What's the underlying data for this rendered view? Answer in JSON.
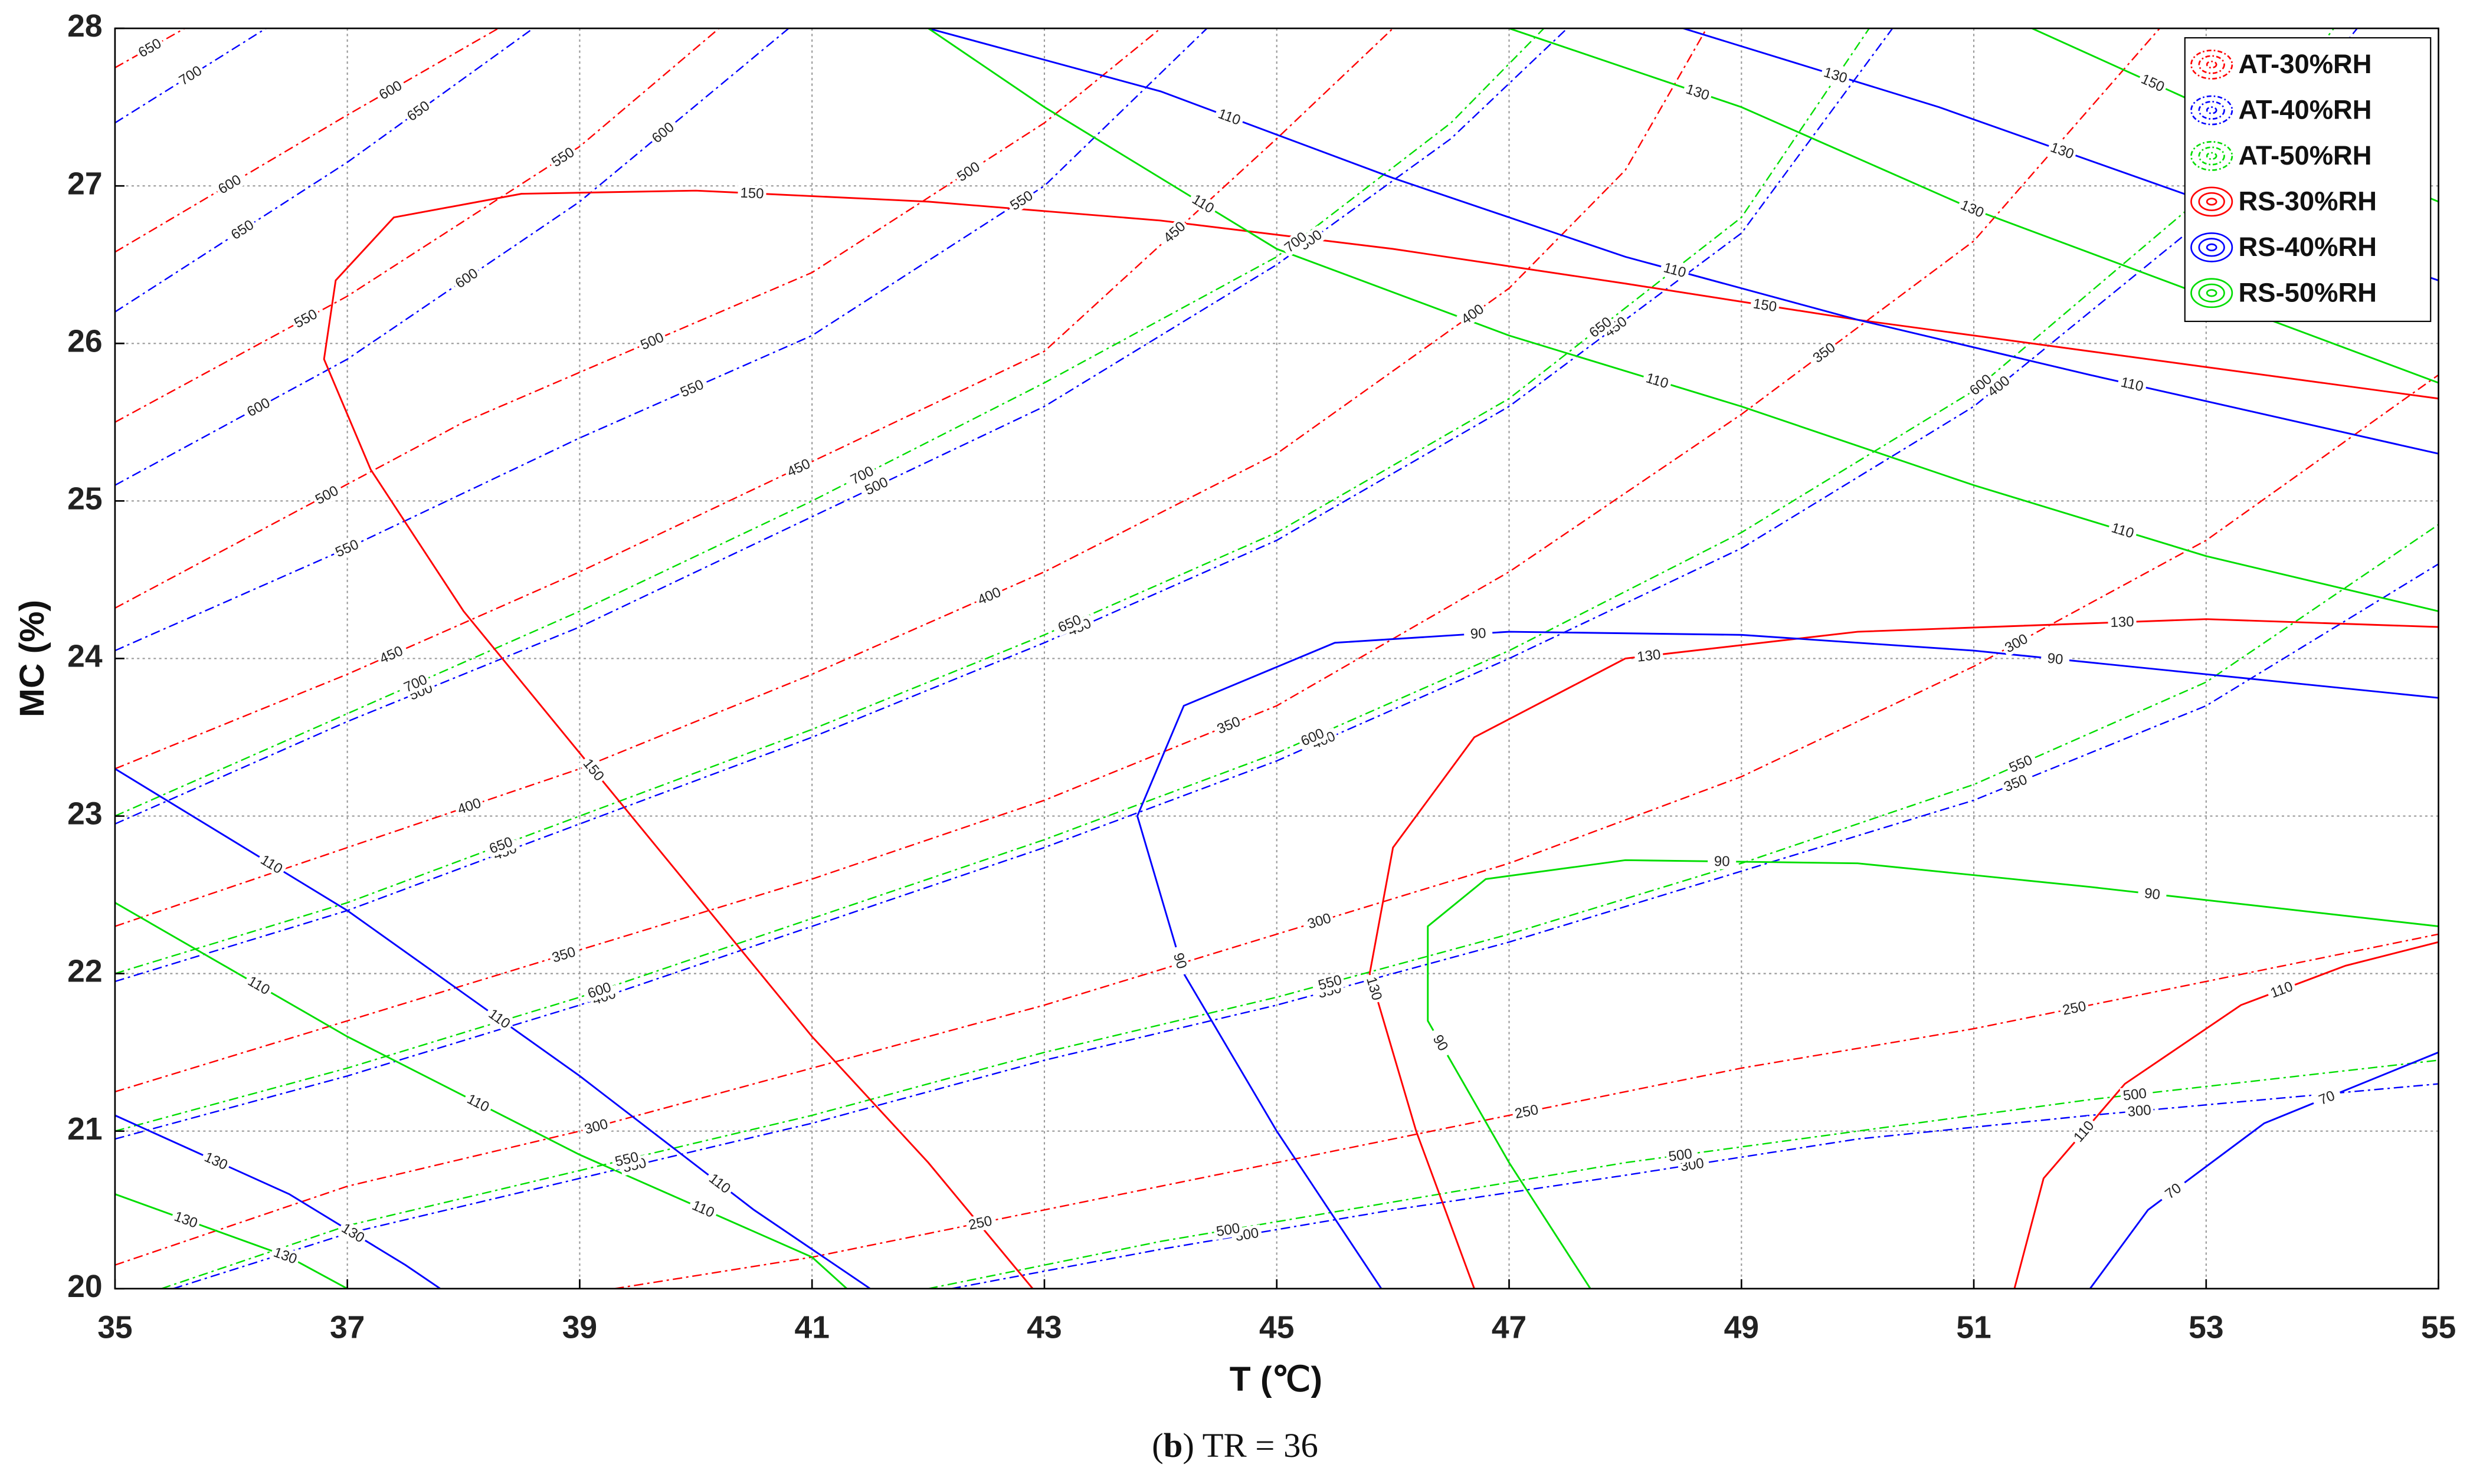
{
  "chart_data": {
    "type": "contour",
    "xlabel": "T (℃)",
    "ylabel": "MC (%)",
    "xlim": [
      35,
      55
    ],
    "ylim": [
      20,
      28
    ],
    "xticks": [
      35,
      37,
      39,
      41,
      43,
      45,
      47,
      49,
      51,
      53,
      55
    ],
    "yticks": [
      20,
      21,
      22,
      23,
      24,
      25,
      26,
      27,
      28
    ],
    "grid": true,
    "legend": "upper right",
    "caption": [
      "(",
      "b",
      ") TR = 36"
    ],
    "series": [
      {
        "name": "AT-30%RH",
        "color": "#ff0000",
        "linestyle": "dashdot",
        "contours": [
          {
            "level": 650,
            "x": [
              35,
              35.6
            ],
            "y": [
              27.75,
              28
            ]
          },
          {
            "level": 600,
            "x": [
              35,
              37,
              38.3
            ],
            "y": [
              26.58,
              27.45,
              28
            ]
          },
          {
            "level": 550,
            "x": [
              35,
              37,
              39,
              40.2
            ],
            "y": [
              25.5,
              26.3,
              27.25,
              28
            ]
          },
          {
            "level": 500,
            "x": [
              35,
              38,
              41,
              43,
              44
            ],
            "y": [
              24.32,
              25.5,
              26.45,
              27.4,
              28
            ]
          },
          {
            "level": 450,
            "x": [
              35,
              37,
              39,
              41,
              43,
              45,
              46
            ],
            "y": [
              23.3,
              23.9,
              24.55,
              25.25,
              25.95,
              27.3,
              28
            ]
          },
          {
            "level": 400,
            "x": [
              35,
              37,
              39,
              41,
              43,
              45,
              47,
              48,
              48.7
            ],
            "y": [
              22.3,
              22.8,
              23.3,
              23.9,
              24.55,
              25.3,
              26.35,
              27.1,
              28
            ]
          },
          {
            "level": 350,
            "x": [
              35,
              37,
              39,
              41,
              43,
              45,
              47,
              49,
              51,
              52.6
            ],
            "y": [
              21.25,
              21.7,
              22.15,
              22.6,
              23.1,
              23.7,
              24.55,
              25.55,
              26.65,
              28
            ]
          },
          {
            "level": 300,
            "x": [
              35,
              37,
              39,
              41,
              43,
              45,
              47,
              49,
              51,
              53,
              55
            ],
            "y": [
              20.15,
              20.65,
              21.0,
              21.4,
              21.8,
              22.25,
              22.7,
              23.25,
              23.95,
              24.75,
              25.8
            ]
          },
          {
            "level": 250,
            "x": [
              39.3,
              41,
              43,
              45,
              47,
              49,
              51,
              53,
              55
            ],
            "y": [
              20,
              20.2,
              20.5,
              20.8,
              21.1,
              21.4,
              21.65,
              21.95,
              22.25
            ]
          }
        ]
      },
      {
        "name": "AT-40%RH",
        "color": "#0000ff",
        "linestyle": "dashdot",
        "contours": [
          {
            "level": 700,
            "x": [
              35,
              36.3
            ],
            "y": [
              27.4,
              28
            ]
          },
          {
            "level": 650,
            "x": [
              35,
              37,
              38.6
            ],
            "y": [
              26.2,
              27.15,
              28
            ]
          },
          {
            "level": 600,
            "x": [
              35,
              37,
              39,
              40.8
            ],
            "y": [
              25.1,
              25.9,
              26.9,
              28
            ]
          },
          {
            "level": 550,
            "x": [
              35,
              37,
              39,
              41,
              43,
              44.4
            ],
            "y": [
              24.05,
              24.7,
              25.4,
              26.05,
              27.0,
              28
            ]
          },
          {
            "level": 500,
            "x": [
              35,
              37,
              39,
              41,
              43,
              45,
              46.5,
              47.5
            ],
            "y": [
              22.95,
              23.6,
              24.2,
              24.9,
              25.6,
              26.5,
              27.3,
              28
            ]
          },
          {
            "level": 450,
            "x": [
              35,
              37,
              39,
              41,
              43,
              45,
              47,
              49,
              50.3
            ],
            "y": [
              21.95,
              22.4,
              22.95,
              23.5,
              24.1,
              24.75,
              25.6,
              26.7,
              28
            ]
          },
          {
            "level": 400,
            "x": [
              35,
              37,
              39,
              41,
              43,
              45,
              47,
              49,
              51,
              53,
              54.3
            ],
            "y": [
              20.95,
              21.35,
              21.8,
              22.3,
              22.8,
              23.35,
              24.0,
              24.7,
              25.6,
              26.8,
              28
            ]
          },
          {
            "level": 350,
            "x": [
              35.5,
              37,
              39,
              41,
              43,
              45,
              47,
              49,
              51,
              53,
              55
            ],
            "y": [
              20,
              20.35,
              20.7,
              21.05,
              21.45,
              21.8,
              22.2,
              22.65,
              23.1,
              23.7,
              24.6
            ]
          },
          {
            "level": 300,
            "x": [
              42.2,
              44,
              46,
              48,
              50,
              52,
              55
            ],
            "y": [
              20,
              20.25,
              20.5,
              20.72,
              20.95,
              21.1,
              21.3
            ]
          }
        ]
      },
      {
        "name": "AT-50%RH",
        "color": "#00dd00",
        "linestyle": "dashdot",
        "contours": [
          {
            "level": 700,
            "x": [
              35,
              37,
              39,
              41,
              43,
              45,
              46.5,
              47.3
            ],
            "y": [
              23.0,
              23.65,
              24.3,
              25.0,
              25.75,
              26.55,
              27.4,
              28
            ]
          },
          {
            "level": 650,
            "x": [
              35,
              37,
              39,
              41,
              43,
              45,
              47,
              49,
              50.1
            ],
            "y": [
              22.0,
              22.45,
              23.0,
              23.55,
              24.15,
              24.8,
              25.65,
              26.8,
              28
            ]
          },
          {
            "level": 600,
            "x": [
              35,
              37,
              39,
              41,
              43,
              45,
              47,
              49,
              51,
              53,
              54.1
            ],
            "y": [
              21.0,
              21.4,
              21.85,
              22.35,
              22.85,
              23.4,
              24.05,
              24.8,
              25.7,
              26.95,
              28
            ]
          },
          {
            "level": 550,
            "x": [
              35.4,
              37,
              39,
              41,
              43,
              45,
              47,
              49,
              51,
              53,
              55
            ],
            "y": [
              20,
              20.4,
              20.75,
              21.1,
              21.5,
              21.85,
              22.25,
              22.7,
              23.2,
              23.85,
              24.85
            ]
          },
          {
            "level": 500,
            "x": [
              42.0,
              44,
              46,
              48,
              50,
              52,
              55
            ],
            "y": [
              20,
              20.3,
              20.55,
              20.8,
              21.0,
              21.2,
              21.45
            ]
          }
        ]
      },
      {
        "name": "RS-30%RH",
        "color": "#ff0000",
        "linestyle": "solid",
        "contours": [
          {
            "level": 150,
            "x": [
              42.9,
              42,
              41,
              40,
              39,
              38,
              37.2,
              36.8,
              36.9,
              37.4,
              38.5,
              40,
              42,
              44,
              46,
              48,
              50,
              52,
              55
            ],
            "y": [
              20,
              20.8,
              21.6,
              22.5,
              23.4,
              24.3,
              25.2,
              25.9,
              26.4,
              26.8,
              26.95,
              26.97,
              26.9,
              26.78,
              26.6,
              26.38,
              26.15,
              25.95,
              25.65
            ]
          },
          {
            "level": 130,
            "x": [
              46.7,
              46.2,
              45.8,
              46,
              46.7,
              48,
              50,
              53,
              55
            ],
            "y": [
              20,
              21,
              22,
              22.8,
              23.5,
              24.0,
              24.17,
              24.25,
              24.2
            ]
          },
          {
            "level": 110,
            "x": [
              51.35,
              51.6,
              52.3,
              53.3,
              54.2,
              55
            ],
            "y": [
              20,
              20.7,
              21.3,
              21.8,
              22.05,
              22.2
            ]
          }
        ]
      },
      {
        "name": "RS-40%RH",
        "color": "#0000ff",
        "linestyle": "solid",
        "contours": [
          {
            "level": 130,
            "x": [
              48.5,
              50.7,
              53,
              55
            ],
            "y": [
              28,
              27.5,
              26.9,
              26.4
            ]
          },
          {
            "level": 110,
            "x": [
              42,
              44,
              46,
              48,
              50,
              52,
              55
            ],
            "y": [
              28,
              27.6,
              27.05,
              26.55,
              26.15,
              25.8,
              25.3
            ]
          },
          {
            "level": 110,
            "x": [
              35,
              37,
              39,
              40.5,
              41.5
            ],
            "y": [
              23.3,
              22.4,
              21.35,
              20.5,
              20
            ]
          },
          {
            "level": 130,
            "x": [
              35,
              36.5,
              37.5,
              37.8
            ],
            "y": [
              21.1,
              20.6,
              20.15,
              20
            ]
          },
          {
            "level": 90,
            "x": [
              45.9,
              45,
              44.2,
              43.8,
              44.2,
              45.5,
              47,
              49,
              51,
              53,
              55
            ],
            "y": [
              20,
              21,
              22,
              23,
              23.7,
              24.1,
              24.17,
              24.15,
              24.05,
              23.9,
              23.75
            ]
          },
          {
            "level": 70,
            "x": [
              52,
              52.5,
              53.5,
              55
            ],
            "y": [
              20,
              20.5,
              21.05,
              21.5
            ]
          }
        ]
      },
      {
        "name": "RS-50%RH",
        "color": "#00dd00",
        "linestyle": "solid",
        "contours": [
          {
            "level": 150,
            "x": [
              51.5,
              53,
              55
            ],
            "y": [
              28,
              27.5,
              26.9
            ]
          },
          {
            "level": 130,
            "x": [
              47,
              49,
              51,
              53,
              55
            ],
            "y": [
              28,
              27.5,
              26.85,
              26.3,
              25.75
            ]
          },
          {
            "level": 110,
            "x": [
              42,
              43,
              45,
              47,
              49,
              51,
              53,
              55
            ],
            "y": [
              28,
              27.5,
              26.6,
              26.05,
              25.6,
              25.1,
              24.65,
              24.3
            ]
          },
          {
            "level": 110,
            "x": [
              35,
              37,
              39,
              41,
              41.3
            ],
            "y": [
              22.45,
              21.6,
              20.85,
              20.2,
              20
            ]
          },
          {
            "level": 130,
            "x": [
              35,
              36.5,
              37
            ],
            "y": [
              20.6,
              20.2,
              20
            ]
          },
          {
            "level": 90,
            "x": [
              47.7,
              47,
              46.3,
              46.3,
              46.8,
              48,
              50,
              52,
              55
            ],
            "y": [
              20,
              20.8,
              21.7,
              22.3,
              22.6,
              22.72,
              22.7,
              22.55,
              22.3
            ]
          }
        ]
      }
    ]
  }
}
